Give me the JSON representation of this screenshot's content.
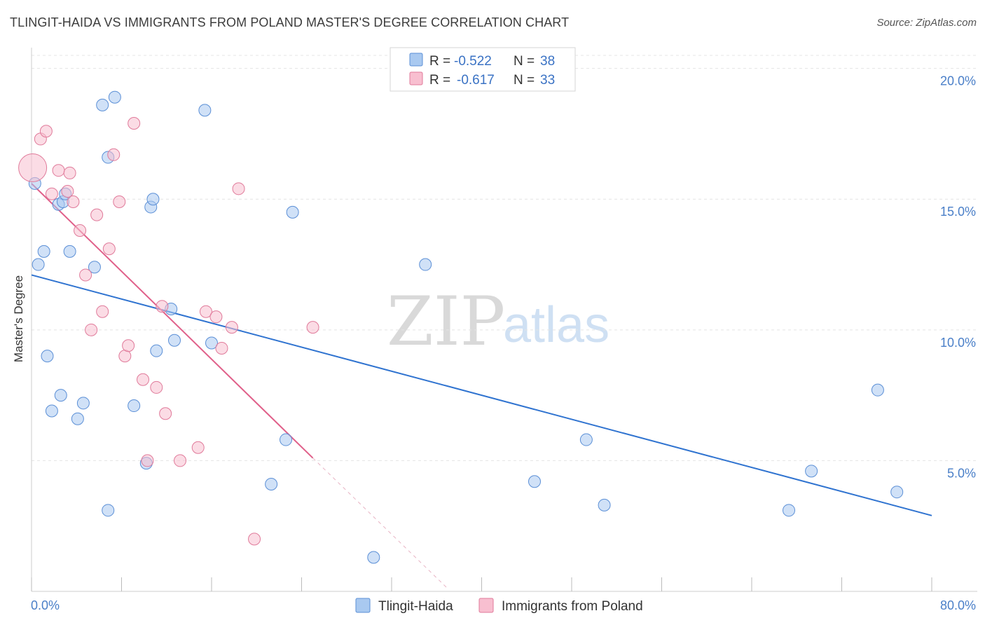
{
  "title": "TLINGIT-HAIDA VS IMMIGRANTS FROM POLAND MASTER'S DEGREE CORRELATION CHART",
  "source": "Source: ZipAtlas.com",
  "watermark": {
    "zip": "ZIP",
    "atlas": "atlas"
  },
  "legend": {
    "rows": [
      {
        "r_label": "R =",
        "r_value": "-0.522",
        "n_label": "N =",
        "n_value": "38",
        "color": "#a9c9f0",
        "stroke": "#5b8fd6"
      },
      {
        "r_label": "R =",
        "r_value": "-0.617",
        "n_label": "N =",
        "n_value": "33",
        "color": "#f8bfd0",
        "stroke": "#e07a9a"
      }
    ]
  },
  "chart_data": {
    "type": "scatter",
    "title": "TLINGIT-HAIDA VS IMMIGRANTS FROM POLAND MASTER'S DEGREE CORRELATION CHART",
    "xlabel": "",
    "ylabel": "Master's Degree",
    "xlim": [
      0,
      80
    ],
    "ylim": [
      0,
      20.5
    ],
    "x_tick_labels": [
      "0.0%",
      "80.0%"
    ],
    "y_ticks": [
      5,
      10,
      15,
      20
    ],
    "y_tick_labels": [
      "5.0%",
      "10.0%",
      "15.0%",
      "20.0%"
    ],
    "grid": true,
    "legend_position": "bottom-center",
    "series": [
      {
        "name": "Tlingit-Haida",
        "color": "#a9c9f0",
        "stroke": "#5b8fd6",
        "line_color": "#2f73d0",
        "points": [
          [
            0.3,
            15.6
          ],
          [
            0.6,
            12.5
          ],
          [
            1.1,
            13.0
          ],
          [
            1.4,
            9.0
          ],
          [
            1.8,
            6.9
          ],
          [
            2.4,
            14.8
          ],
          [
            2.6,
            7.5
          ],
          [
            2.8,
            14.9
          ],
          [
            3.0,
            15.2
          ],
          [
            3.4,
            13.0
          ],
          [
            4.1,
            6.6
          ],
          [
            4.6,
            7.2
          ],
          [
            5.6,
            12.4
          ],
          [
            6.3,
            18.6
          ],
          [
            6.8,
            16.6
          ],
          [
            7.4,
            18.9
          ],
          [
            6.8,
            3.1
          ],
          [
            9.1,
            7.1
          ],
          [
            10.2,
            4.9
          ],
          [
            10.6,
            14.7
          ],
          [
            10.8,
            15.0
          ],
          [
            11.1,
            9.2
          ],
          [
            12.4,
            10.8
          ],
          [
            12.7,
            9.6
          ],
          [
            15.4,
            18.4
          ],
          [
            16.0,
            9.5
          ],
          [
            21.3,
            4.1
          ],
          [
            22.6,
            5.8
          ],
          [
            23.2,
            14.5
          ],
          [
            30.4,
            1.3
          ],
          [
            35.0,
            12.5
          ],
          [
            44.7,
            4.2
          ],
          [
            49.3,
            5.8
          ],
          [
            50.9,
            3.3
          ],
          [
            67.3,
            3.1
          ],
          [
            69.3,
            4.6
          ],
          [
            75.2,
            7.7
          ],
          [
            76.9,
            3.8
          ]
        ],
        "trend": {
          "x": [
            0,
            80
          ],
          "y": [
            12.1,
            2.9
          ]
        }
      },
      {
        "name": "Immigrants from Poland",
        "color": "#f8bfd0",
        "stroke": "#e07a9a",
        "line_color": "#e0608a",
        "points": [
          [
            0.1,
            16.2
          ],
          [
            0.8,
            17.3
          ],
          [
            1.3,
            17.6
          ],
          [
            1.8,
            15.2
          ],
          [
            2.4,
            16.1
          ],
          [
            3.2,
            15.3
          ],
          [
            3.4,
            16.0
          ],
          [
            3.7,
            14.9
          ],
          [
            4.3,
            13.8
          ],
          [
            4.8,
            12.1
          ],
          [
            5.8,
            14.4
          ],
          [
            6.3,
            10.7
          ],
          [
            5.3,
            10.0
          ],
          [
            6.9,
            13.1
          ],
          [
            7.3,
            16.7
          ],
          [
            7.8,
            14.9
          ],
          [
            8.3,
            9.0
          ],
          [
            8.6,
            9.4
          ],
          [
            9.1,
            17.9
          ],
          [
            9.9,
            8.1
          ],
          [
            10.3,
            5.0
          ],
          [
            11.1,
            7.8
          ],
          [
            11.9,
            6.8
          ],
          [
            11.6,
            10.9
          ],
          [
            13.2,
            5.0
          ],
          [
            14.8,
            5.5
          ],
          [
            15.5,
            10.7
          ],
          [
            16.4,
            10.5
          ],
          [
            16.9,
            9.3
          ],
          [
            17.8,
            10.1
          ],
          [
            18.4,
            15.4
          ],
          [
            19.8,
            2.0
          ],
          [
            25.0,
            10.1
          ]
        ],
        "trend": {
          "x": [
            0,
            25
          ],
          "y": [
            15.6,
            5.1
          ]
        },
        "trend_extension": {
          "x": [
            25,
            37
          ],
          "y": [
            5.1,
            0.1
          ]
        }
      }
    ]
  }
}
